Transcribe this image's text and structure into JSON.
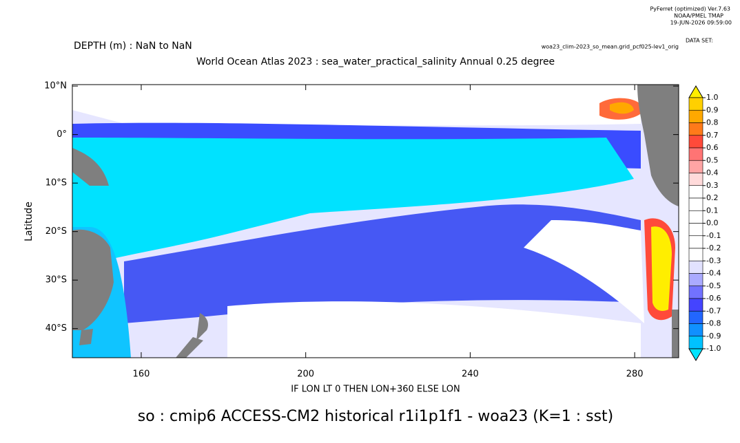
{
  "chart_data": {
    "type": "map",
    "header": {
      "software": "PyFerret (optimized) Ver.7.63",
      "lab": "NOAA/PMEL TMAP",
      "date": "19-JUN-2026 09:59:00",
      "dataset_label": "DATA SET:",
      "dataset": "woa23_clim-2023_so_mean.grid_pcf025-lev1_orig"
    },
    "depth": "DEPTH (m) : NaN to NaN",
    "title": "World Ocean Atlas 2023 : sea_water_practical_salinity Annual  0.25 degree",
    "ylabel": "Latitude",
    "xlabel": "IF LON LT 0 THEN LON+360 ELSE LON",
    "caption": "so : cmip6 ACCESS-CM2 historical r1i1p1f1 - woa23  (K=1 : sst)",
    "xlim": [
      143.25,
      290.7
    ],
    "ylim": [
      -46,
      10.3
    ],
    "xticks": [
      160,
      200,
      240,
      280
    ],
    "yticks": [
      {
        "value": 10,
        "label": "10°N"
      },
      {
        "value": 0,
        "label": "0°"
      },
      {
        "value": -10,
        "label": "10°S"
      },
      {
        "value": -20,
        "label": "20°S"
      },
      {
        "value": -30,
        "label": "30°S"
      },
      {
        "value": -40,
        "label": "40°S"
      }
    ],
    "colorbar": {
      "levels": [
        {
          "value": 1,
          "label": "1.0"
        },
        0.9,
        0.8,
        0.7,
        0.6,
        0.5,
        0.4,
        0.3,
        0.2,
        0.1,
        {
          "value": 0,
          "label": "0.0"
        },
        -0.1,
        -0.2,
        -0.3,
        -0.4,
        -0.5,
        -0.6,
        -0.7,
        -0.8,
        -0.9,
        {
          "value": -1,
          "label": "-1.0"
        }
      ],
      "colors": [
        "#ffee00",
        "#ffd000",
        "#ffa800",
        "#ff7a1a",
        "#ff4a3a",
        "#ff7474",
        "#ffa4a4",
        "#ffdada",
        "#ffffff",
        "#ffffff",
        "#ffffff",
        "#ffffff",
        "#ffffff",
        "#ffffff",
        "#e2e2ff",
        "#aaaaff",
        "#7272ff",
        "#4444ff",
        "#2266ff",
        "#1090ff",
        "#00c2ff",
        "#00e4ff"
      ]
    }
  }
}
